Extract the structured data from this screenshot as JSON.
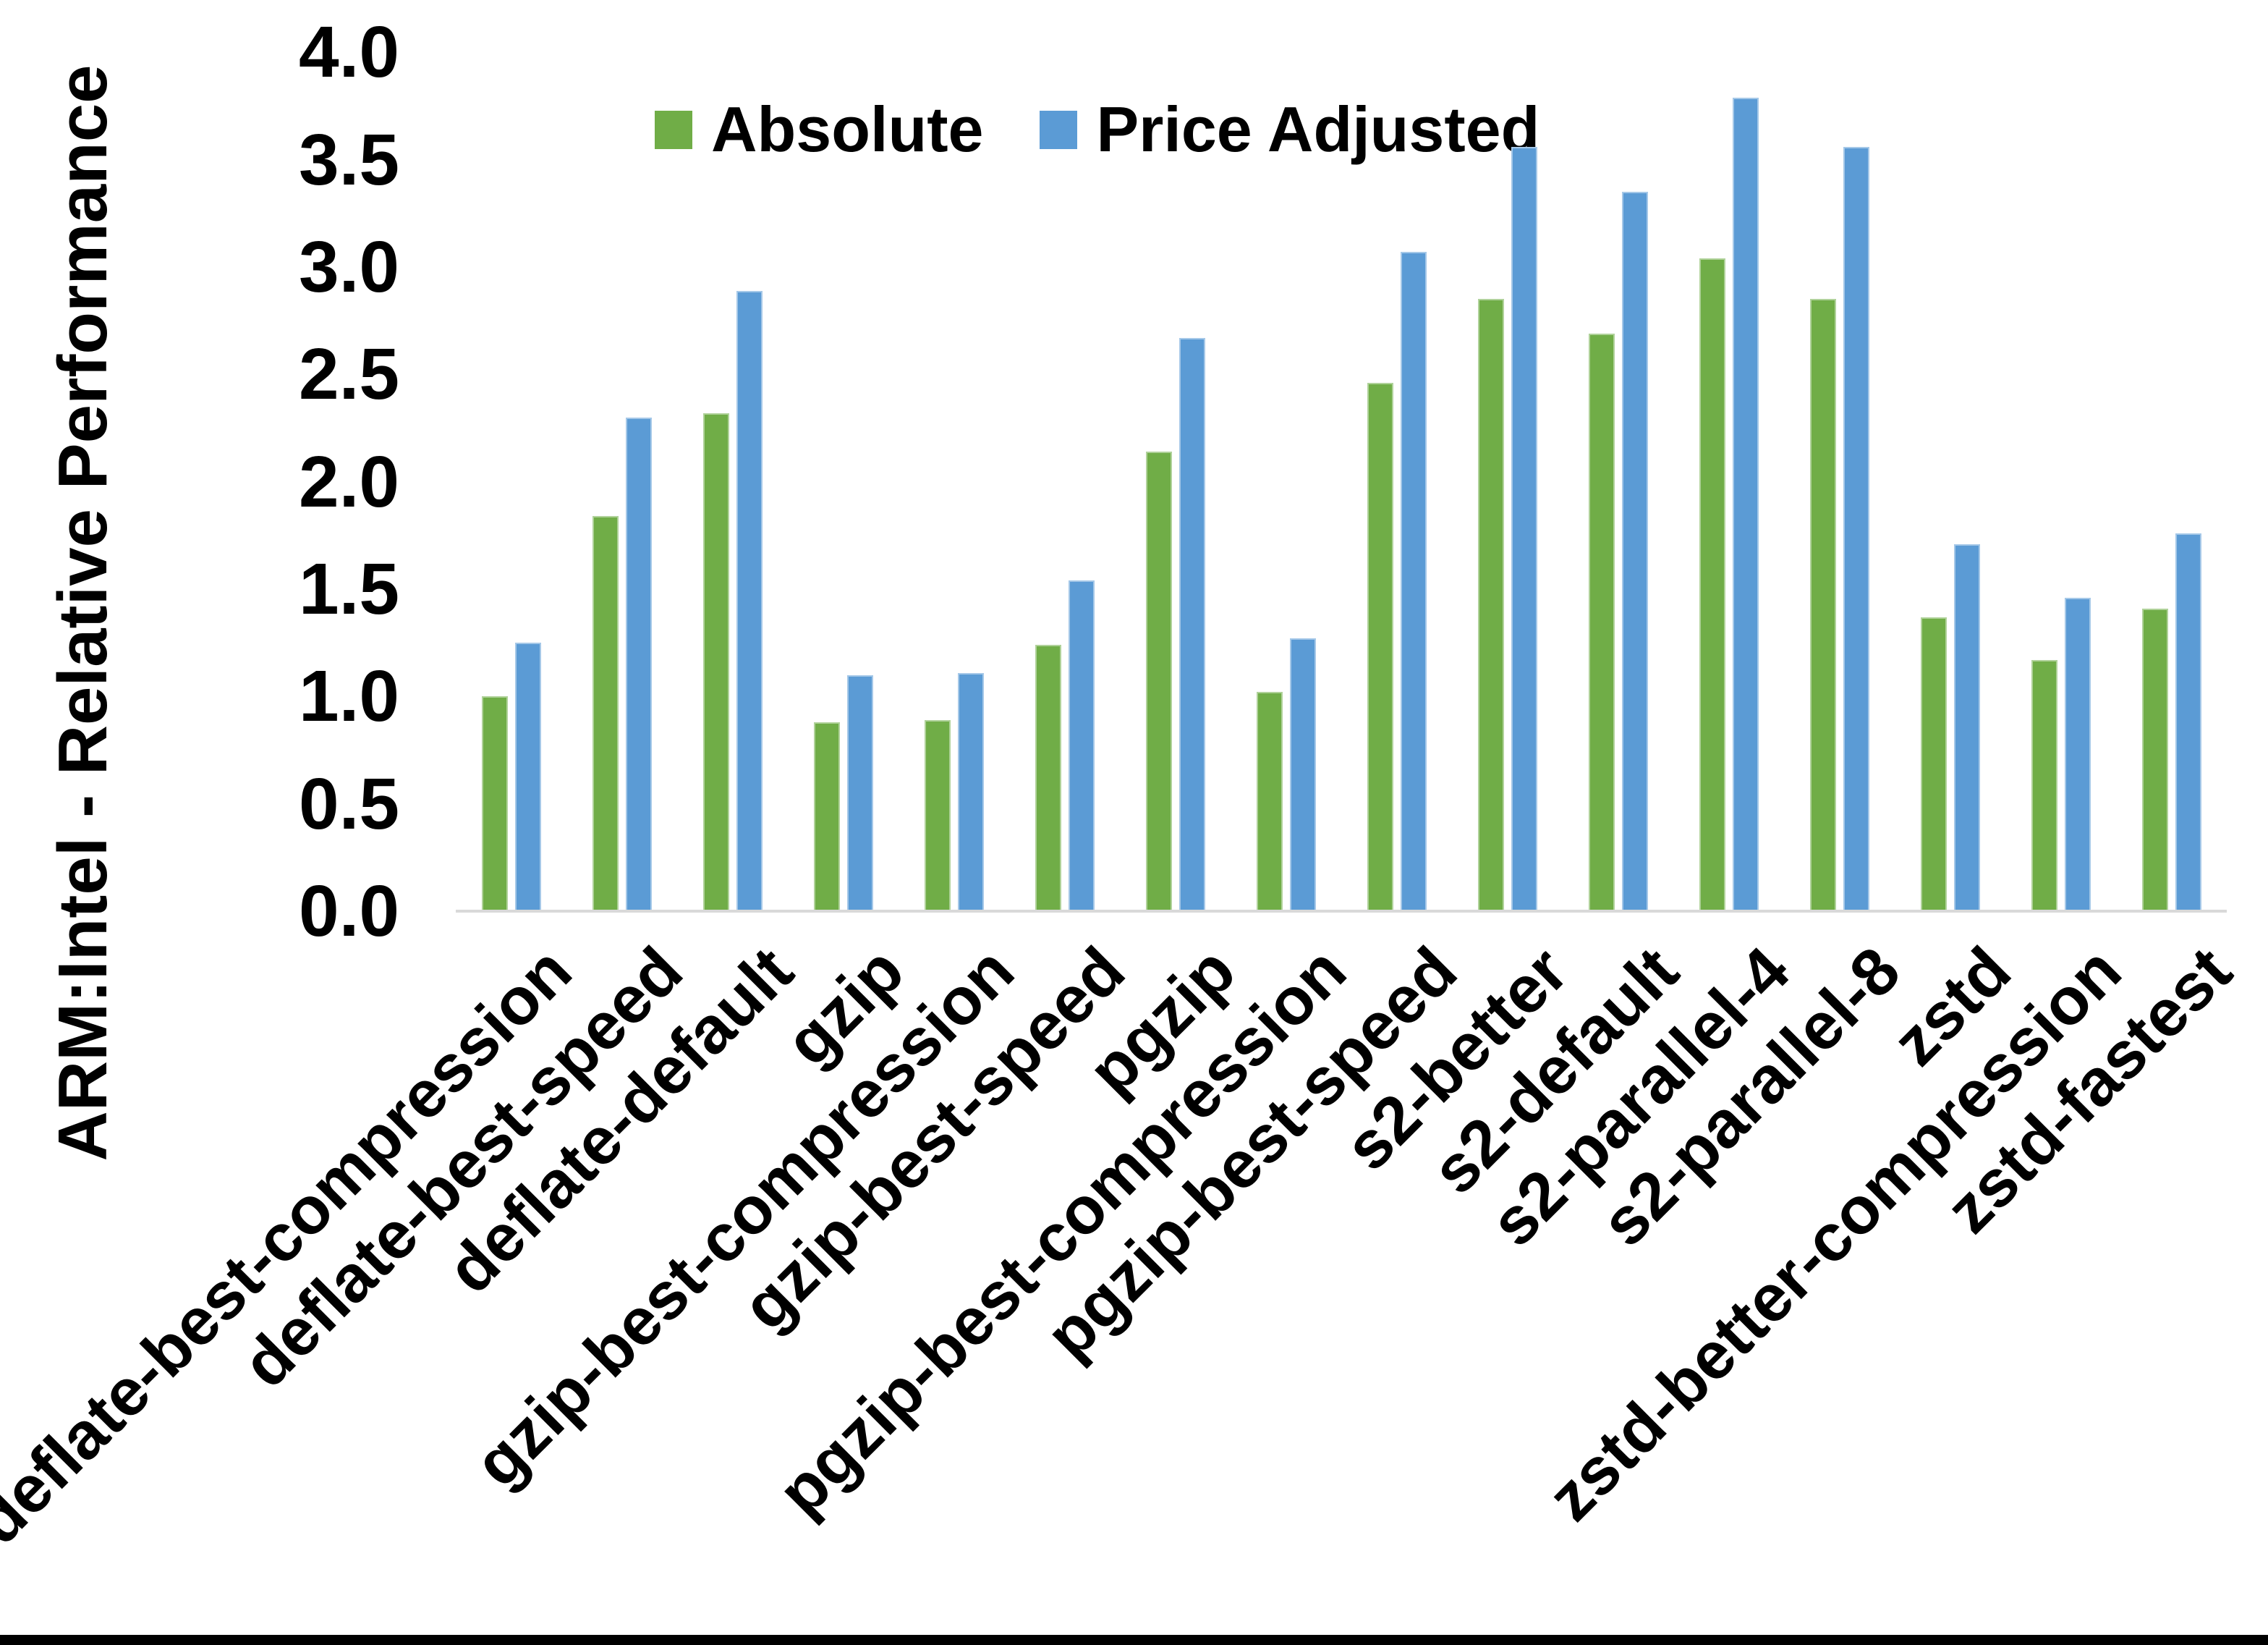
{
  "chart_data": {
    "type": "bar",
    "title": "",
    "ylabel": "ARM:Intel - Relative Performance",
    "xlabel": "",
    "ylim": [
      0.0,
      4.0
    ],
    "ytick_step": 0.5,
    "ytick_labels": [
      "0.0",
      "0.5",
      "1.0",
      "1.5",
      "2.0",
      "2.5",
      "3.0",
      "3.5",
      "4.0"
    ],
    "grid": "off",
    "legend_position": "top-center",
    "categories": [
      "deflate-best-compression",
      "deflate-best-speed",
      "deflate-default",
      "gzip",
      "gzip-best-compression",
      "gzip-best-speed",
      "pgzip",
      "pgzip-best-compression",
      "pgzip-best-speed",
      "s2-better",
      "s2-default",
      "s2-parallel-4",
      "s2-parallel-8",
      "zstd",
      "zstd-better-compression",
      "zstd-fastest"
    ],
    "series": [
      {
        "name": "Absolute",
        "color": "#70AD47",
        "values": [
          1.0,
          1.84,
          2.32,
          0.88,
          0.89,
          1.24,
          2.14,
          1.02,
          2.46,
          2.85,
          2.69,
          3.04,
          2.85,
          1.37,
          1.17,
          1.41
        ]
      },
      {
        "name": "Price Adjusted",
        "color": "#5B9BD5",
        "values": [
          1.25,
          2.3,
          2.89,
          1.1,
          1.11,
          1.54,
          2.67,
          1.27,
          3.07,
          3.56,
          3.35,
          3.79,
          3.56,
          1.71,
          1.46,
          1.76
        ]
      }
    ],
    "colors": {
      "absolute": "#70AD47",
      "price_adjusted": "#5B9BD5",
      "axis_line": "#D9D9D9",
      "text": "#000000"
    }
  }
}
